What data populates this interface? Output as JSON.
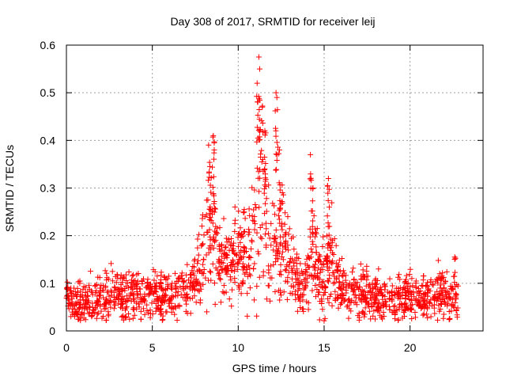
{
  "chart_data": {
    "type": "scatter",
    "title": "Day 308 of 2017, SRMTID for receiver leij",
    "xlabel": "GPS time / hours",
    "ylabel": "SRMTID / TECUs",
    "xlim": [
      0,
      24.25
    ],
    "ylim": [
      0,
      0.6
    ],
    "xticks": [
      0,
      5,
      10,
      15,
      20
    ],
    "xtick_labels": [
      "0",
      "5",
      "10",
      "15",
      "20"
    ],
    "yticks": [
      0,
      0.1,
      0.2,
      0.3,
      0.4,
      0.5,
      0.6
    ],
    "ytick_labels": [
      "0",
      "0.1",
      "0.2",
      "0.3",
      "0.4",
      "0.5",
      "0.6"
    ],
    "grid": true,
    "marker": "+",
    "color": "#ff0000",
    "series": [
      {
        "name": "SRMTID",
        "x_start": 0,
        "x_end": 22.8,
        "profile": [
          [
            0,
            0.058,
            0.02
          ],
          [
            1,
            0.062,
            0.02
          ],
          [
            2,
            0.07,
            0.024
          ],
          [
            3,
            0.08,
            0.026
          ],
          [
            4,
            0.08,
            0.024
          ],
          [
            5,
            0.072,
            0.022
          ],
          [
            6,
            0.07,
            0.022
          ],
          [
            7,
            0.085,
            0.025
          ],
          [
            7.6,
            0.11,
            0.03
          ],
          [
            8.0,
            0.15,
            0.045
          ],
          [
            8.3,
            0.22,
            0.07
          ],
          [
            8.6,
            0.2,
            0.06
          ],
          [
            9.0,
            0.14,
            0.035
          ],
          [
            9.5,
            0.14,
            0.035
          ],
          [
            10.0,
            0.16,
            0.04
          ],
          [
            10.5,
            0.14,
            0.04
          ],
          [
            11.0,
            0.2,
            0.09
          ],
          [
            11.4,
            0.3,
            0.13
          ],
          [
            11.8,
            0.16,
            0.06
          ],
          [
            12.2,
            0.18,
            0.07
          ],
          [
            12.6,
            0.2,
            0.07
          ],
          [
            13.0,
            0.14,
            0.05
          ],
          [
            13.5,
            0.09,
            0.03
          ],
          [
            14.0,
            0.1,
            0.035
          ],
          [
            14.3,
            0.18,
            0.07
          ],
          [
            14.7,
            0.1,
            0.04
          ],
          [
            15.0,
            0.11,
            0.04
          ],
          [
            15.3,
            0.17,
            0.06
          ],
          [
            15.7,
            0.1,
            0.03
          ],
          [
            16.5,
            0.08,
            0.025
          ],
          [
            17.5,
            0.075,
            0.022
          ],
          [
            18.5,
            0.07,
            0.022
          ],
          [
            19.5,
            0.066,
            0.02
          ],
          [
            20.5,
            0.068,
            0.022
          ],
          [
            21.5,
            0.07,
            0.022
          ],
          [
            22.8,
            0.065,
            0.022
          ]
        ],
        "peaks": [
          [
            8.35,
            0.345
          ],
          [
            8.55,
            0.41
          ],
          [
            8.6,
            0.395
          ],
          [
            10.35,
            0.255
          ],
          [
            11.1,
            0.52
          ],
          [
            11.2,
            0.575
          ],
          [
            11.25,
            0.55
          ],
          [
            11.4,
            0.47
          ],
          [
            11.55,
            0.42
          ],
          [
            12.2,
            0.5
          ],
          [
            12.25,
            0.49
          ],
          [
            12.4,
            0.38
          ],
          [
            14.2,
            0.37
          ],
          [
            14.35,
            0.3
          ],
          [
            15.25,
            0.32
          ],
          [
            15.3,
            0.26
          ],
          [
            22.6,
            0.155
          ]
        ],
        "min_value": 0.02
      }
    ]
  }
}
